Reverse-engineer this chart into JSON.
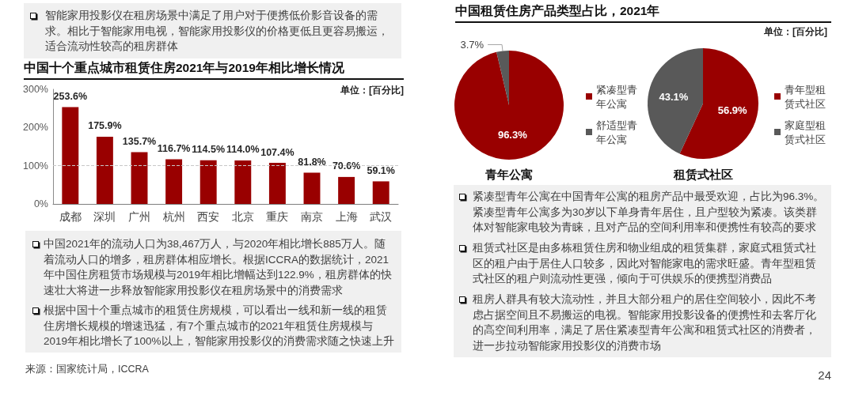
{
  "chart_data": [
    {
      "type": "bar",
      "title": "中国十个重点城市租赁住房2021年与2019年相比增长情况",
      "subtitle": "单位：[百分比]",
      "categories": [
        "成都",
        "深圳",
        "广州",
        "杭州",
        "西安",
        "北京",
        "重庆",
        "南京",
        "上海",
        "武汉"
      ],
      "values": [
        253.6,
        175.9,
        135.7,
        116.7,
        114.5,
        114.0,
        107.4,
        81.8,
        70.6,
        59.1
      ],
      "value_labels": [
        "253.6%",
        "175.9%",
        "135.7%",
        "116.7%",
        "114.5%",
        "114.0%",
        "107.4%",
        "81.8%",
        "70.6%",
        "59.1%"
      ],
      "color": "#990000",
      "ylim": [
        0,
        300
      ],
      "yticks": [
        {
          "value": 0,
          "label": "0%"
        },
        {
          "value": 100,
          "label": "100%"
        },
        {
          "value": 200,
          "label": "200%"
        },
        {
          "value": 300,
          "label": "300%"
        }
      ],
      "ref_lines": [
        {
          "axis": "y",
          "value": 100,
          "color": "#c8c8c8",
          "line_style": "dashed"
        }
      ],
      "annotations": [
        "智能家用投影仪在租房场景中满足了用户对于便携低价影音设备的需求。相比于智能家用电视，智能家用投影仪的价格更低且更容易搬运，适合流动性较高的租房群体",
        "中国2021年的流动人口为38,467万人，与2020年相比增长885万人。随着流动人口的增多，租房群体相应增长。根据ICCRA的数据统计，2021年中国住房租赁市场规模与2019年相比增幅达到122.9%，租房群体的快速壮大将进一步释放智能家用投影仪在租房场景中的消费需求",
        "根据中国十个重点城市的租赁住房规模，可以看出一线和新一线的租赁住房增长规模的增速迅猛，有7个重点城市的2021年租赁住房规模与2019年相比增长了100%以上，智能家用投影仪的消费需求随之快速上升",
        "来源：国家统计局，ICCRA"
      ]
    },
    {
      "type": "pie",
      "title": "中国租赁住房产品类型占比，2021年",
      "subtitle": "单位：[百分比]",
      "xlabel": "青年公寓",
      "categories": [
        "紧凑型青年公寓",
        "舒适型青年公寓"
      ],
      "values": [
        96.3,
        3.7
      ],
      "colors": [
        "#990000",
        "#595959"
      ],
      "value_labels": [
        "96.3%",
        "3.7%"
      ],
      "legend": "right",
      "annotations": [
        "紧凑型青年公寓在中国青年公寓的租房产品中最受欢迎，占比为96.3%。紧凑型青年公寓多为30岁以下单身青年居住，且户型较为紧凑。该类群体对智能家电较为青睐，且对产品的空间利用率和便携性有较高的要求",
        "租赁式社区是由多栋租赁住房和物业组成的租赁集群，家庭式租赁式社区的租户由于居住人口较多，因此对智能家电的需求旺盛。青年型租赁式社区的租户则流动性更强，倾向于可供娱乐的便携型消费品",
        "租房人群具有较大流动性，并且大部分租户的居住空间较小，因此不考虑占据空间且不易搬运的电视。智能家用投影设备的便携性和去客厅化的高空间利用率，满足了居住紧凑型青年公寓和租赁式社区的消费者，进一步拉动智能家用投影仪的消费市场",
        "24"
      ]
    },
    {
      "type": "pie",
      "xlabel": "租赁式社区",
      "categories": [
        "青年型租赁式社区",
        "家庭型租赁式社区"
      ],
      "values": [
        56.9,
        43.1
      ],
      "colors": [
        "#990000",
        "#595959"
      ],
      "value_labels": [
        "56.9%",
        "43.1%"
      ],
      "legend": "right"
    }
  ]
}
